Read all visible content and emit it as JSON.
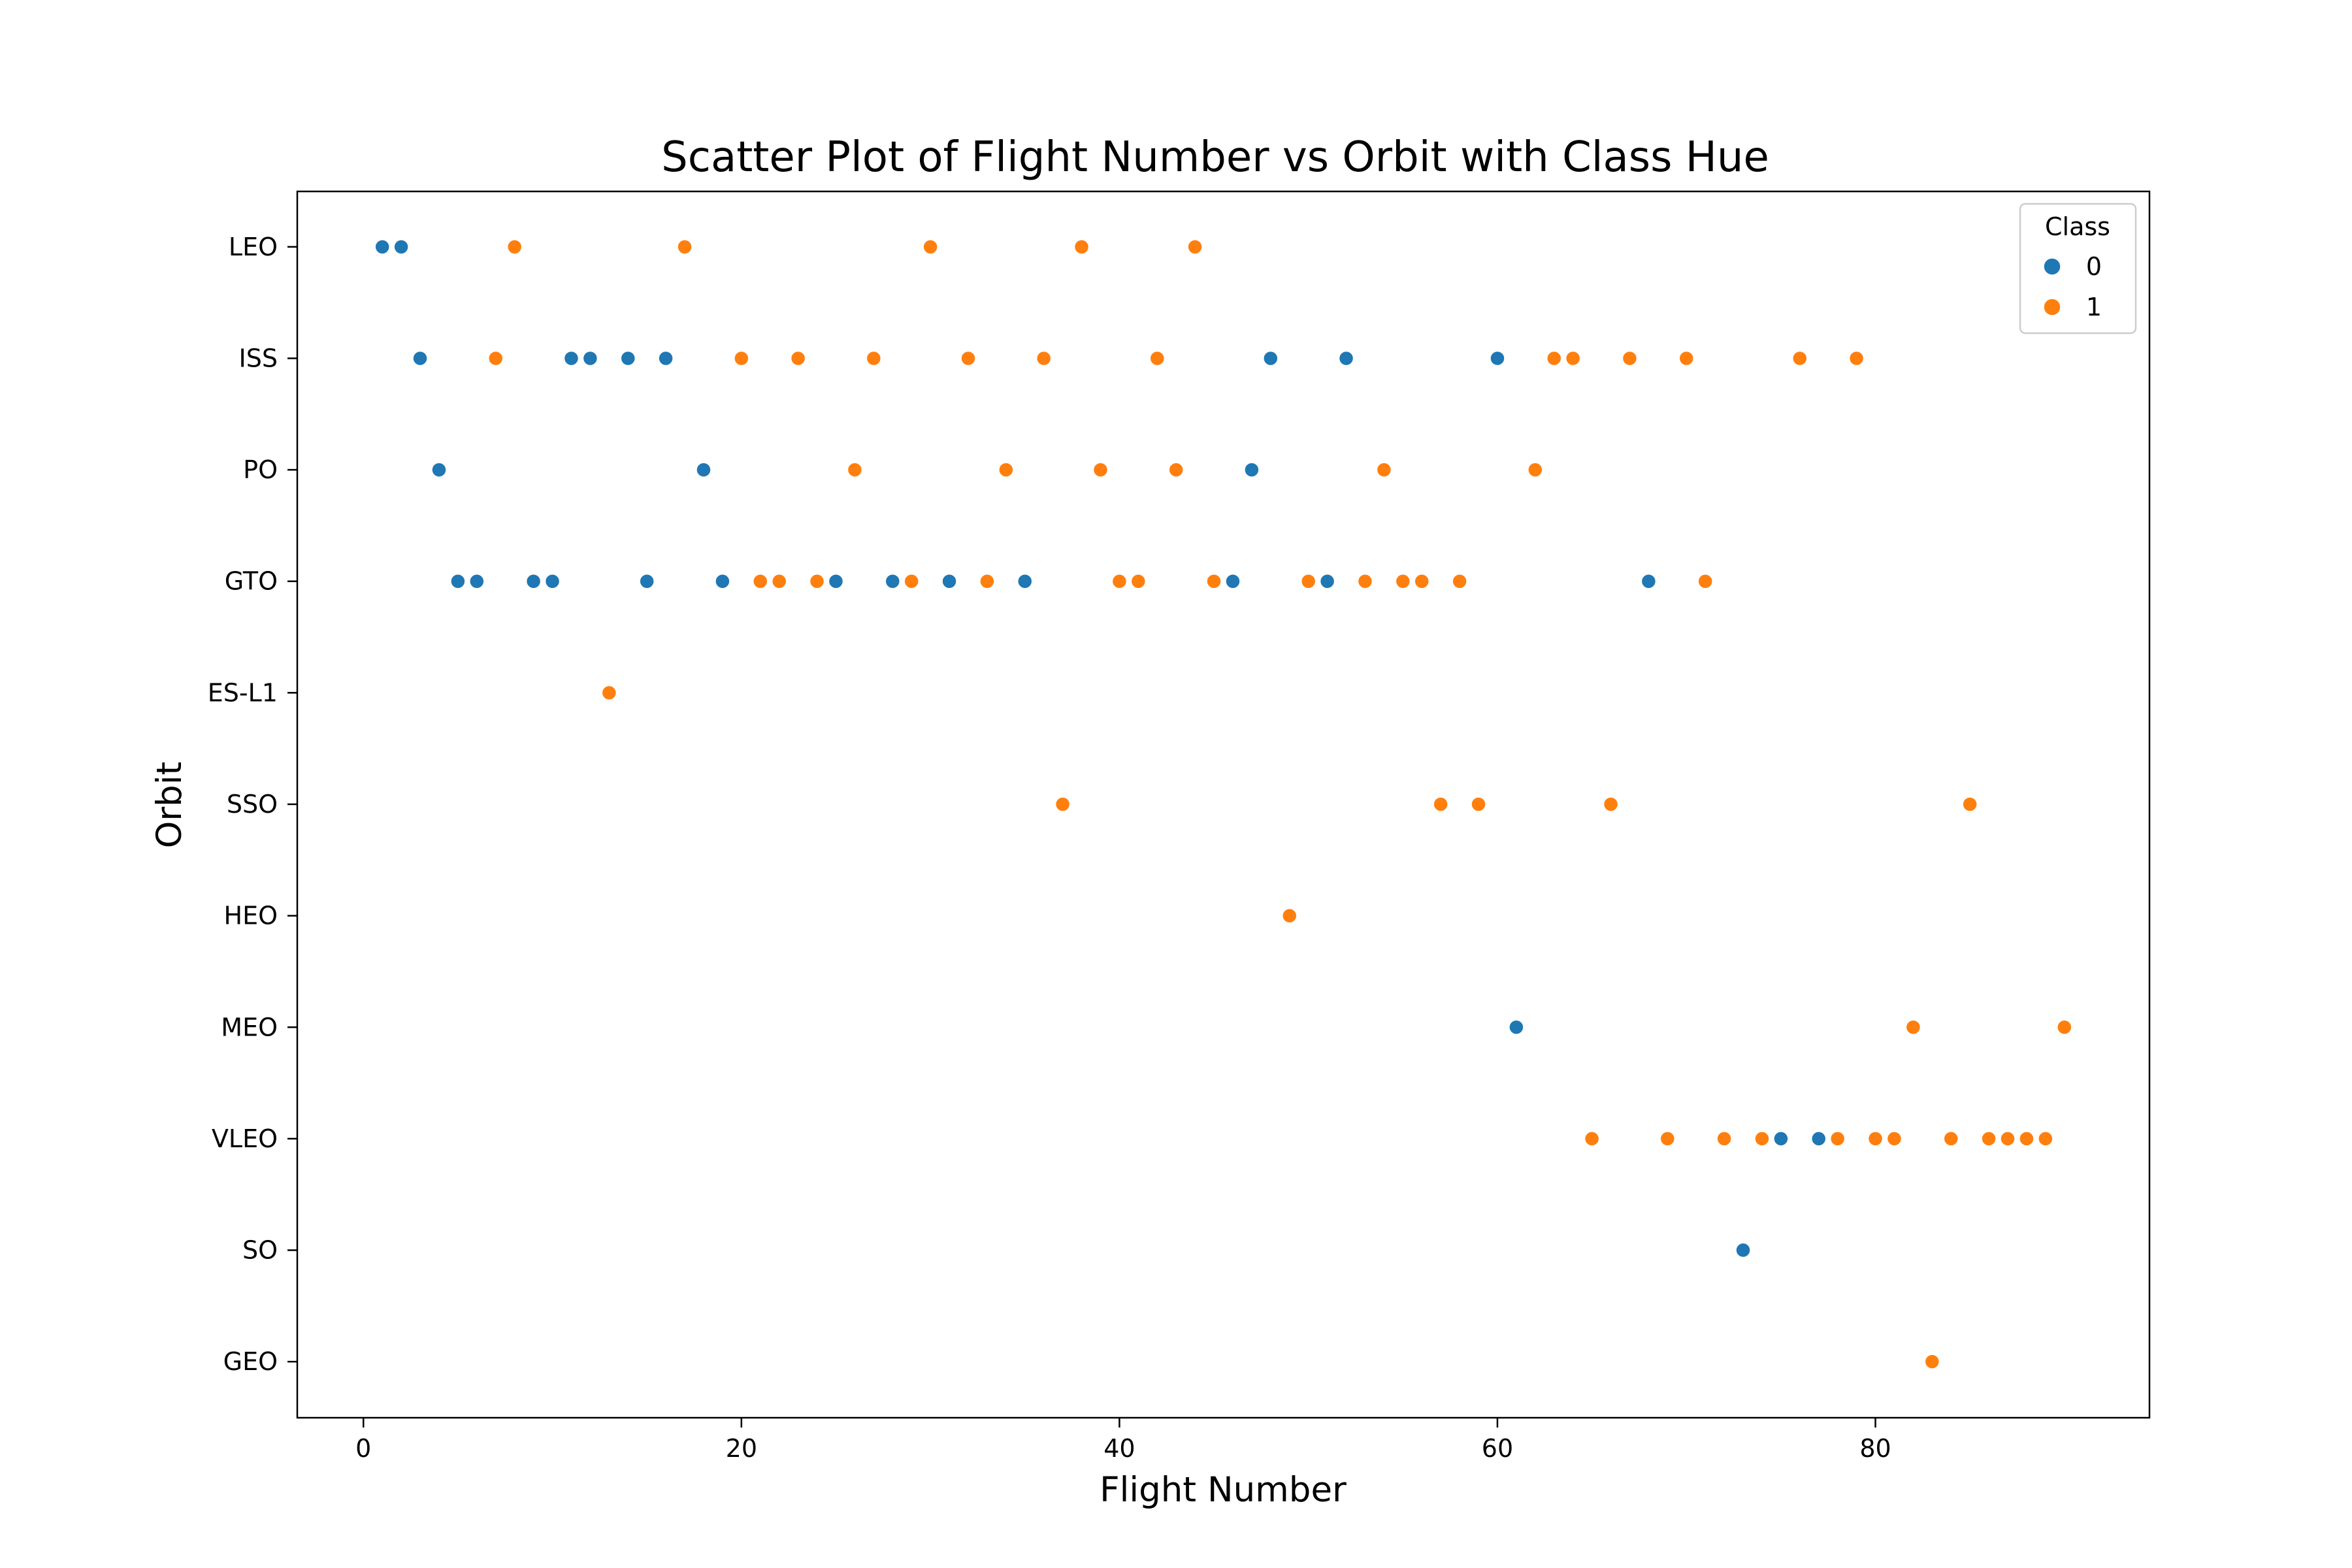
{
  "chart_data": {
    "type": "scatter",
    "title": "Scatter Plot of Flight Number vs Orbit with Class Hue",
    "xlabel": "Flight Number",
    "ylabel": "Orbit",
    "xlim": [
      -3.5,
      94.5
    ],
    "x_ticks": [
      0,
      20,
      40,
      60,
      80
    ],
    "categories": [
      "LEO",
      "ISS",
      "PO",
      "GTO",
      "ES-L1",
      "SSO",
      "HEO",
      "MEO",
      "VLEO",
      "SO",
      "GEO"
    ],
    "grid": false,
    "legend": {
      "title": "Class",
      "position": "top-right",
      "entries": [
        {
          "label": "0",
          "color": "#1f77b4"
        },
        {
          "label": "1",
          "color": "#ff7f0e"
        }
      ]
    },
    "series": [
      {
        "class": "0",
        "color": "#1f77b4",
        "points": [
          {
            "x": 1,
            "y": "LEO"
          },
          {
            "x": 2,
            "y": "LEO"
          },
          {
            "x": 3,
            "y": "ISS"
          },
          {
            "x": 11,
            "y": "ISS"
          },
          {
            "x": 12,
            "y": "ISS"
          },
          {
            "x": 14,
            "y": "ISS"
          },
          {
            "x": 16,
            "y": "ISS"
          },
          {
            "x": 48,
            "y": "ISS"
          },
          {
            "x": 52,
            "y": "ISS"
          },
          {
            "x": 60,
            "y": "ISS"
          },
          {
            "x": 4,
            "y": "PO"
          },
          {
            "x": 18,
            "y": "PO"
          },
          {
            "x": 47,
            "y": "PO"
          },
          {
            "x": 5,
            "y": "GTO"
          },
          {
            "x": 6,
            "y": "GTO"
          },
          {
            "x": 9,
            "y": "GTO"
          },
          {
            "x": 10,
            "y": "GTO"
          },
          {
            "x": 15,
            "y": "GTO"
          },
          {
            "x": 19,
            "y": "GTO"
          },
          {
            "x": 25,
            "y": "GTO"
          },
          {
            "x": 28,
            "y": "GTO"
          },
          {
            "x": 31,
            "y": "GTO"
          },
          {
            "x": 35,
            "y": "GTO"
          },
          {
            "x": 46,
            "y": "GTO"
          },
          {
            "x": 51,
            "y": "GTO"
          },
          {
            "x": 68,
            "y": "GTO"
          },
          {
            "x": 61,
            "y": "MEO"
          },
          {
            "x": 75,
            "y": "VLEO"
          },
          {
            "x": 77,
            "y": "VLEO"
          },
          {
            "x": 73,
            "y": "SO"
          }
        ]
      },
      {
        "class": "1",
        "color": "#ff7f0e",
        "points": [
          {
            "x": 8,
            "y": "LEO"
          },
          {
            "x": 17,
            "y": "LEO"
          },
          {
            "x": 30,
            "y": "LEO"
          },
          {
            "x": 38,
            "y": "LEO"
          },
          {
            "x": 44,
            "y": "LEO"
          },
          {
            "x": 7,
            "y": "ISS"
          },
          {
            "x": 20,
            "y": "ISS"
          },
          {
            "x": 23,
            "y": "ISS"
          },
          {
            "x": 27,
            "y": "ISS"
          },
          {
            "x": 32,
            "y": "ISS"
          },
          {
            "x": 36,
            "y": "ISS"
          },
          {
            "x": 42,
            "y": "ISS"
          },
          {
            "x": 63,
            "y": "ISS"
          },
          {
            "x": 64,
            "y": "ISS"
          },
          {
            "x": 67,
            "y": "ISS"
          },
          {
            "x": 70,
            "y": "ISS"
          },
          {
            "x": 76,
            "y": "ISS"
          },
          {
            "x": 79,
            "y": "ISS"
          },
          {
            "x": 26,
            "y": "PO"
          },
          {
            "x": 34,
            "y": "PO"
          },
          {
            "x": 39,
            "y": "PO"
          },
          {
            "x": 43,
            "y": "PO"
          },
          {
            "x": 54,
            "y": "PO"
          },
          {
            "x": 62,
            "y": "PO"
          },
          {
            "x": 21,
            "y": "GTO"
          },
          {
            "x": 22,
            "y": "GTO"
          },
          {
            "x": 24,
            "y": "GTO"
          },
          {
            "x": 29,
            "y": "GTO"
          },
          {
            "x": 33,
            "y": "GTO"
          },
          {
            "x": 40,
            "y": "GTO"
          },
          {
            "x": 41,
            "y": "GTO"
          },
          {
            "x": 45,
            "y": "GTO"
          },
          {
            "x": 50,
            "y": "GTO"
          },
          {
            "x": 53,
            "y": "GTO"
          },
          {
            "x": 55,
            "y": "GTO"
          },
          {
            "x": 56,
            "y": "GTO"
          },
          {
            "x": 58,
            "y": "GTO"
          },
          {
            "x": 71,
            "y": "GTO"
          },
          {
            "x": 13,
            "y": "ES-L1"
          },
          {
            "x": 37,
            "y": "SSO"
          },
          {
            "x": 57,
            "y": "SSO"
          },
          {
            "x": 59,
            "y": "SSO"
          },
          {
            "x": 66,
            "y": "SSO"
          },
          {
            "x": 85,
            "y": "SSO"
          },
          {
            "x": 49,
            "y": "HEO"
          },
          {
            "x": 82,
            "y": "MEO"
          },
          {
            "x": 90,
            "y": "MEO"
          },
          {
            "x": 65,
            "y": "VLEO"
          },
          {
            "x": 69,
            "y": "VLEO"
          },
          {
            "x": 72,
            "y": "VLEO"
          },
          {
            "x": 74,
            "y": "VLEO"
          },
          {
            "x": 78,
            "y": "VLEO"
          },
          {
            "x": 80,
            "y": "VLEO"
          },
          {
            "x": 81,
            "y": "VLEO"
          },
          {
            "x": 84,
            "y": "VLEO"
          },
          {
            "x": 86,
            "y": "VLEO"
          },
          {
            "x": 87,
            "y": "VLEO"
          },
          {
            "x": 88,
            "y": "VLEO"
          },
          {
            "x": 89,
            "y": "VLEO"
          },
          {
            "x": 83,
            "y": "GEO"
          }
        ]
      }
    ]
  }
}
